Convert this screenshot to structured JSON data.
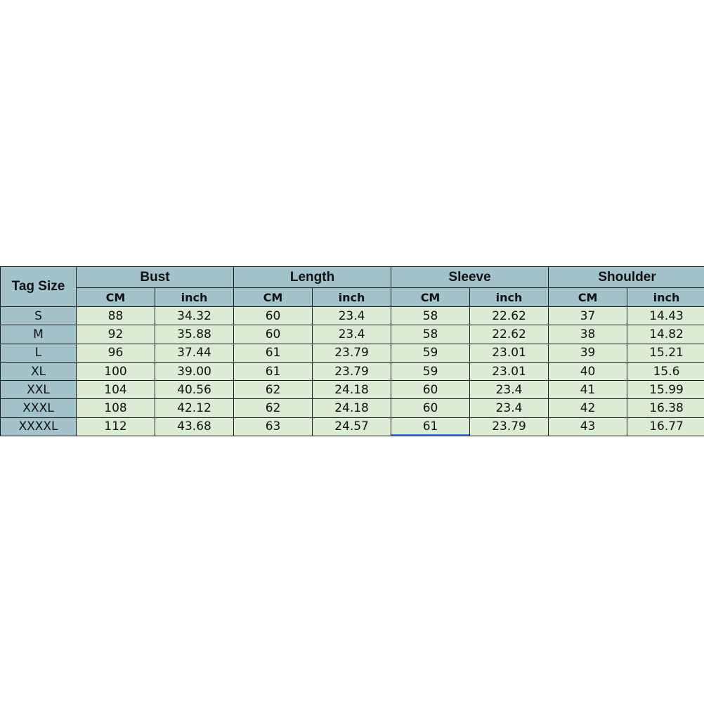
{
  "table": {
    "tag_header": "Tag Size",
    "groups": [
      "Bust",
      "Length",
      "Sleeve",
      "Shoulder"
    ],
    "units": [
      "CM",
      "inch"
    ],
    "rows": [
      [
        "S",
        "88",
        "34.32",
        "60",
        "23.4",
        "58",
        "22.62",
        "37",
        "14.43"
      ],
      [
        "M",
        "92",
        "35.88",
        "60",
        "23.4",
        "58",
        "22.62",
        "38",
        "14.82"
      ],
      [
        "L",
        "96",
        "37.44",
        "61",
        "23.79",
        "59",
        "23.01",
        "39",
        "15.21"
      ],
      [
        "XL",
        "100",
        "39.00",
        "61",
        "23.79",
        "59",
        "23.01",
        "40",
        "15.6"
      ],
      [
        "XXL",
        "104",
        "40.56",
        "62",
        "24.18",
        "60",
        "23.4",
        "41",
        "15.99"
      ],
      [
        "XXXL",
        "108",
        "42.12",
        "62",
        "24.18",
        "60",
        "23.4",
        "42",
        "16.38"
      ],
      [
        "XXXXL",
        "112",
        "43.68",
        "63",
        "24.57",
        "61",
        "23.79",
        "43",
        "16.77"
      ]
    ]
  },
  "colors": {
    "header": "#a3c3ca",
    "cell": "#dcebd3"
  }
}
